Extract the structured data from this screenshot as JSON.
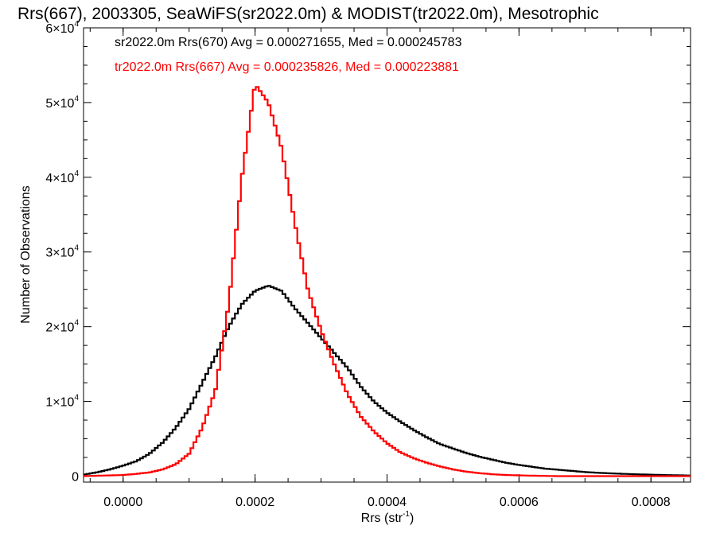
{
  "chart_data": {
    "type": "line",
    "title": "Rrs(667), 2003305, SeaWiFS(sr2022.0m) & MODIST(tr2022.0m), Mesotrophic",
    "xlabel": "Rrs (str",
    "xlabel_sup": "-1",
    "xlabel_end": ")",
    "ylabel": "Number of Observations",
    "xlim": [
      -6e-05,
      0.00086
    ],
    "ylim": [
      -800,
      60000
    ],
    "xticks": [
      0.0,
      0.0002,
      0.0004,
      0.0006,
      0.0008
    ],
    "xtick_labels": [
      "0.0000",
      "0.0002",
      "0.0004",
      "0.0006",
      "0.0008"
    ],
    "yticks": [
      0,
      10000,
      20000,
      30000,
      40000,
      50000,
      60000
    ],
    "ytick_labels": [
      {
        "mant": "0",
        "sup": ""
      },
      {
        "mant": "1×10",
        "sup": "4"
      },
      {
        "mant": "2×10",
        "sup": "4"
      },
      {
        "mant": "3×10",
        "sup": "4"
      },
      {
        "mant": "4×10",
        "sup": "4"
      },
      {
        "mant": "5×10",
        "sup": "4"
      },
      {
        "mant": "6×10",
        "sup": "4"
      }
    ],
    "grid": false,
    "legend_position": "top-left",
    "series": [
      {
        "name": "sr2022.0m Rrs(670) Avg = 0.000271655, Med = 0.000245783",
        "color": "#000000",
        "points": [
          [
            -6e-05,
            200
          ],
          [
            -4e-05,
            500
          ],
          [
            -2e-05,
            900
          ],
          [
            0.0,
            1400
          ],
          [
            2e-05,
            2000
          ],
          [
            4e-05,
            3000
          ],
          [
            6e-05,
            4500
          ],
          [
            8e-05,
            6500
          ],
          [
            0.0001,
            9000
          ],
          [
            0.00012,
            12500
          ],
          [
            0.00014,
            16000
          ],
          [
            0.00016,
            20000
          ],
          [
            0.00018,
            23000
          ],
          [
            0.0002,
            24800
          ],
          [
            0.00022,
            25500
          ],
          [
            0.00024,
            24800
          ],
          [
            0.00026,
            22500
          ],
          [
            0.00028,
            20500
          ],
          [
            0.0003,
            18500
          ],
          [
            0.00032,
            16500
          ],
          [
            0.00034,
            14500
          ],
          [
            0.00036,
            12000
          ],
          [
            0.00038,
            10000
          ],
          [
            0.0004,
            8500
          ],
          [
            0.00042,
            7300
          ],
          [
            0.00044,
            6200
          ],
          [
            0.00046,
            5200
          ],
          [
            0.00048,
            4300
          ],
          [
            0.0005,
            3700
          ],
          [
            0.00052,
            3100
          ],
          [
            0.00054,
            2600
          ],
          [
            0.00056,
            2200
          ],
          [
            0.00058,
            1800
          ],
          [
            0.0006,
            1500
          ],
          [
            0.00062,
            1250
          ],
          [
            0.00064,
            1000
          ],
          [
            0.00066,
            850
          ],
          [
            0.00068,
            700
          ],
          [
            0.0007,
            550
          ],
          [
            0.00072,
            450
          ],
          [
            0.00074,
            370
          ],
          [
            0.00076,
            300
          ],
          [
            0.00078,
            240
          ],
          [
            0.0008,
            190
          ],
          [
            0.00082,
            150
          ],
          [
            0.00084,
            110
          ],
          [
            0.00086,
            80
          ]
        ]
      },
      {
        "name": "tr2022.0m Rrs(667) Avg = 0.000235826, Med = 0.000223881",
        "color": "#ff0000",
        "points": [
          [
            -6e-05,
            0
          ],
          [
            -4e-05,
            50
          ],
          [
            -2e-05,
            100
          ],
          [
            0.0,
            150
          ],
          [
            2e-05,
            300
          ],
          [
            4e-05,
            500
          ],
          [
            6e-05,
            900
          ],
          [
            8e-05,
            1600
          ],
          [
            0.0001,
            3000
          ],
          [
            0.00012,
            6500
          ],
          [
            0.00014,
            11500
          ],
          [
            0.00016,
            23000
          ],
          [
            0.00018,
            40000
          ],
          [
            0.0002,
            52500
          ],
          [
            0.00022,
            50000
          ],
          [
            0.00024,
            44000
          ],
          [
            0.00026,
            34000
          ],
          [
            0.00028,
            25000
          ],
          [
            0.0003,
            19500
          ],
          [
            0.00032,
            15000
          ],
          [
            0.00034,
            11000
          ],
          [
            0.00036,
            8000
          ],
          [
            0.00038,
            6000
          ],
          [
            0.0004,
            4400
          ],
          [
            0.00042,
            3200
          ],
          [
            0.00044,
            2400
          ],
          [
            0.00046,
            1800
          ],
          [
            0.00048,
            1300
          ],
          [
            0.0005,
            900
          ],
          [
            0.00052,
            600
          ],
          [
            0.00054,
            400
          ],
          [
            0.00056,
            250
          ],
          [
            0.00058,
            150
          ],
          [
            0.0006,
            100
          ],
          [
            0.00062,
            60
          ],
          [
            0.00064,
            30
          ],
          [
            0.00066,
            0
          ],
          [
            0.00068,
            0
          ],
          [
            0.0007,
            0
          ],
          [
            0.00072,
            0
          ],
          [
            0.00074,
            0
          ],
          [
            0.00076,
            0
          ],
          [
            0.00078,
            0
          ],
          [
            0.0008,
            0
          ],
          [
            0.00082,
            0
          ],
          [
            0.00084,
            0
          ],
          [
            0.00086,
            0
          ]
        ]
      }
    ]
  }
}
